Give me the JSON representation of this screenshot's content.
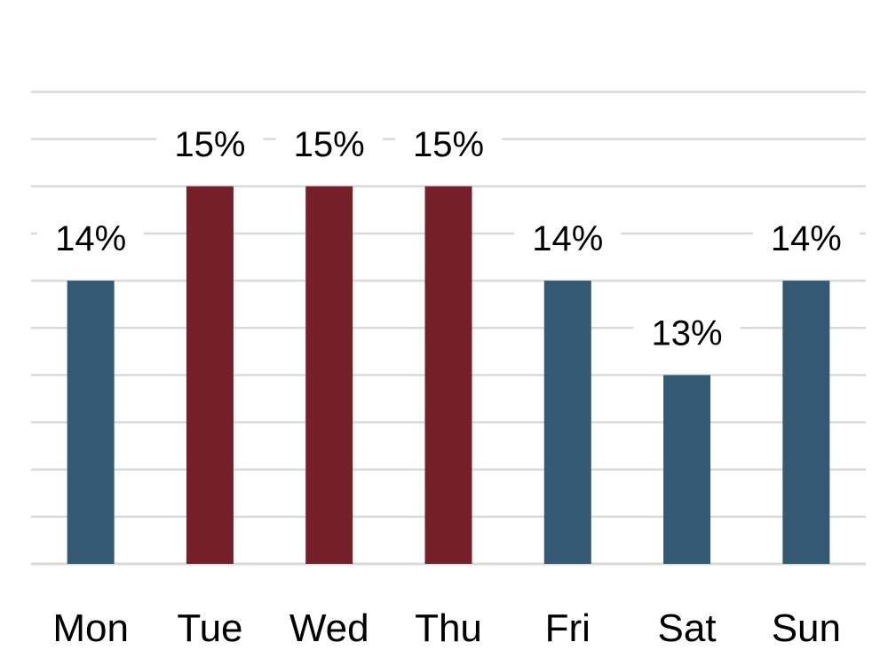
{
  "chart_data": {
    "type": "bar",
    "categories": [
      "Mon",
      "Tue",
      "Wed",
      "Thu",
      "Fri",
      "Sat",
      "Sun"
    ],
    "values": [
      14,
      15,
      15,
      15,
      14,
      13,
      14
    ],
    "data_labels": [
      "14%",
      "15%",
      "15%",
      "15%",
      "14%",
      "13%",
      "14%"
    ],
    "title": "",
    "xlabel": "",
    "ylabel": "",
    "ylim": [
      11,
      16
    ],
    "y_unit": "%",
    "grid": true,
    "legend": "none",
    "highlighted_categories": [
      "Tue",
      "Wed",
      "Thu"
    ],
    "colors": {
      "default_bar": "#335a72",
      "highlight_bar": "#751f28",
      "gridline": "#d9d9d9"
    }
  }
}
